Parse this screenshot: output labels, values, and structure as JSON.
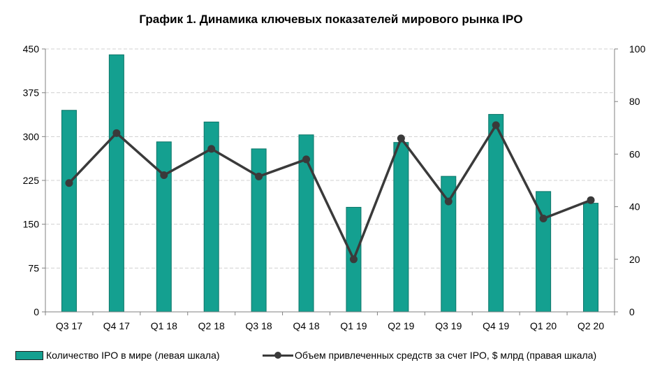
{
  "title": "График 1. Динамика ключевых показателей мирового рынка IPO",
  "colors": {
    "bar": "#14a090",
    "bar_stroke": "#0d7568",
    "line": "#3a3a3a",
    "grid": "#d0d0d0",
    "axis": "#808080"
  },
  "chart_data": {
    "type": "bar",
    "title": "График 1. Динамика ключевых показателей мирового рынка IPO",
    "categories": [
      "Q3 17",
      "Q4 17",
      "Q1 18",
      "Q2 18",
      "Q3 18",
      "Q4 18",
      "Q1 19",
      "Q2 19",
      "Q3 19",
      "Q4 19",
      "Q1 20",
      "Q2 20"
    ],
    "series": [
      {
        "name": "Количество IPO в мире (левая шкала)",
        "type": "bar",
        "axis": "left",
        "values": [
          345,
          440,
          291,
          325,
          279,
          303,
          179,
          290,
          232,
          338,
          206,
          186
        ]
      },
      {
        "name": "Объем привлеченных средств за счет IPO, $ млрд (правая шкала)",
        "type": "line",
        "axis": "right",
        "values": [
          49,
          68,
          52,
          62,
          51.5,
          58,
          20,
          66,
          42,
          71,
          35.5,
          42.5
        ]
      }
    ],
    "y_left": {
      "lim": [
        0,
        450
      ],
      "ticks": [
        "0",
        "75",
        "150",
        "225",
        "300",
        "375",
        "450"
      ]
    },
    "y_right": {
      "lim": [
        0,
        100
      ],
      "ticks": [
        "0",
        "20",
        "40",
        "60",
        "80",
        "100"
      ]
    },
    "grid": true,
    "legend_position": "bottom"
  }
}
